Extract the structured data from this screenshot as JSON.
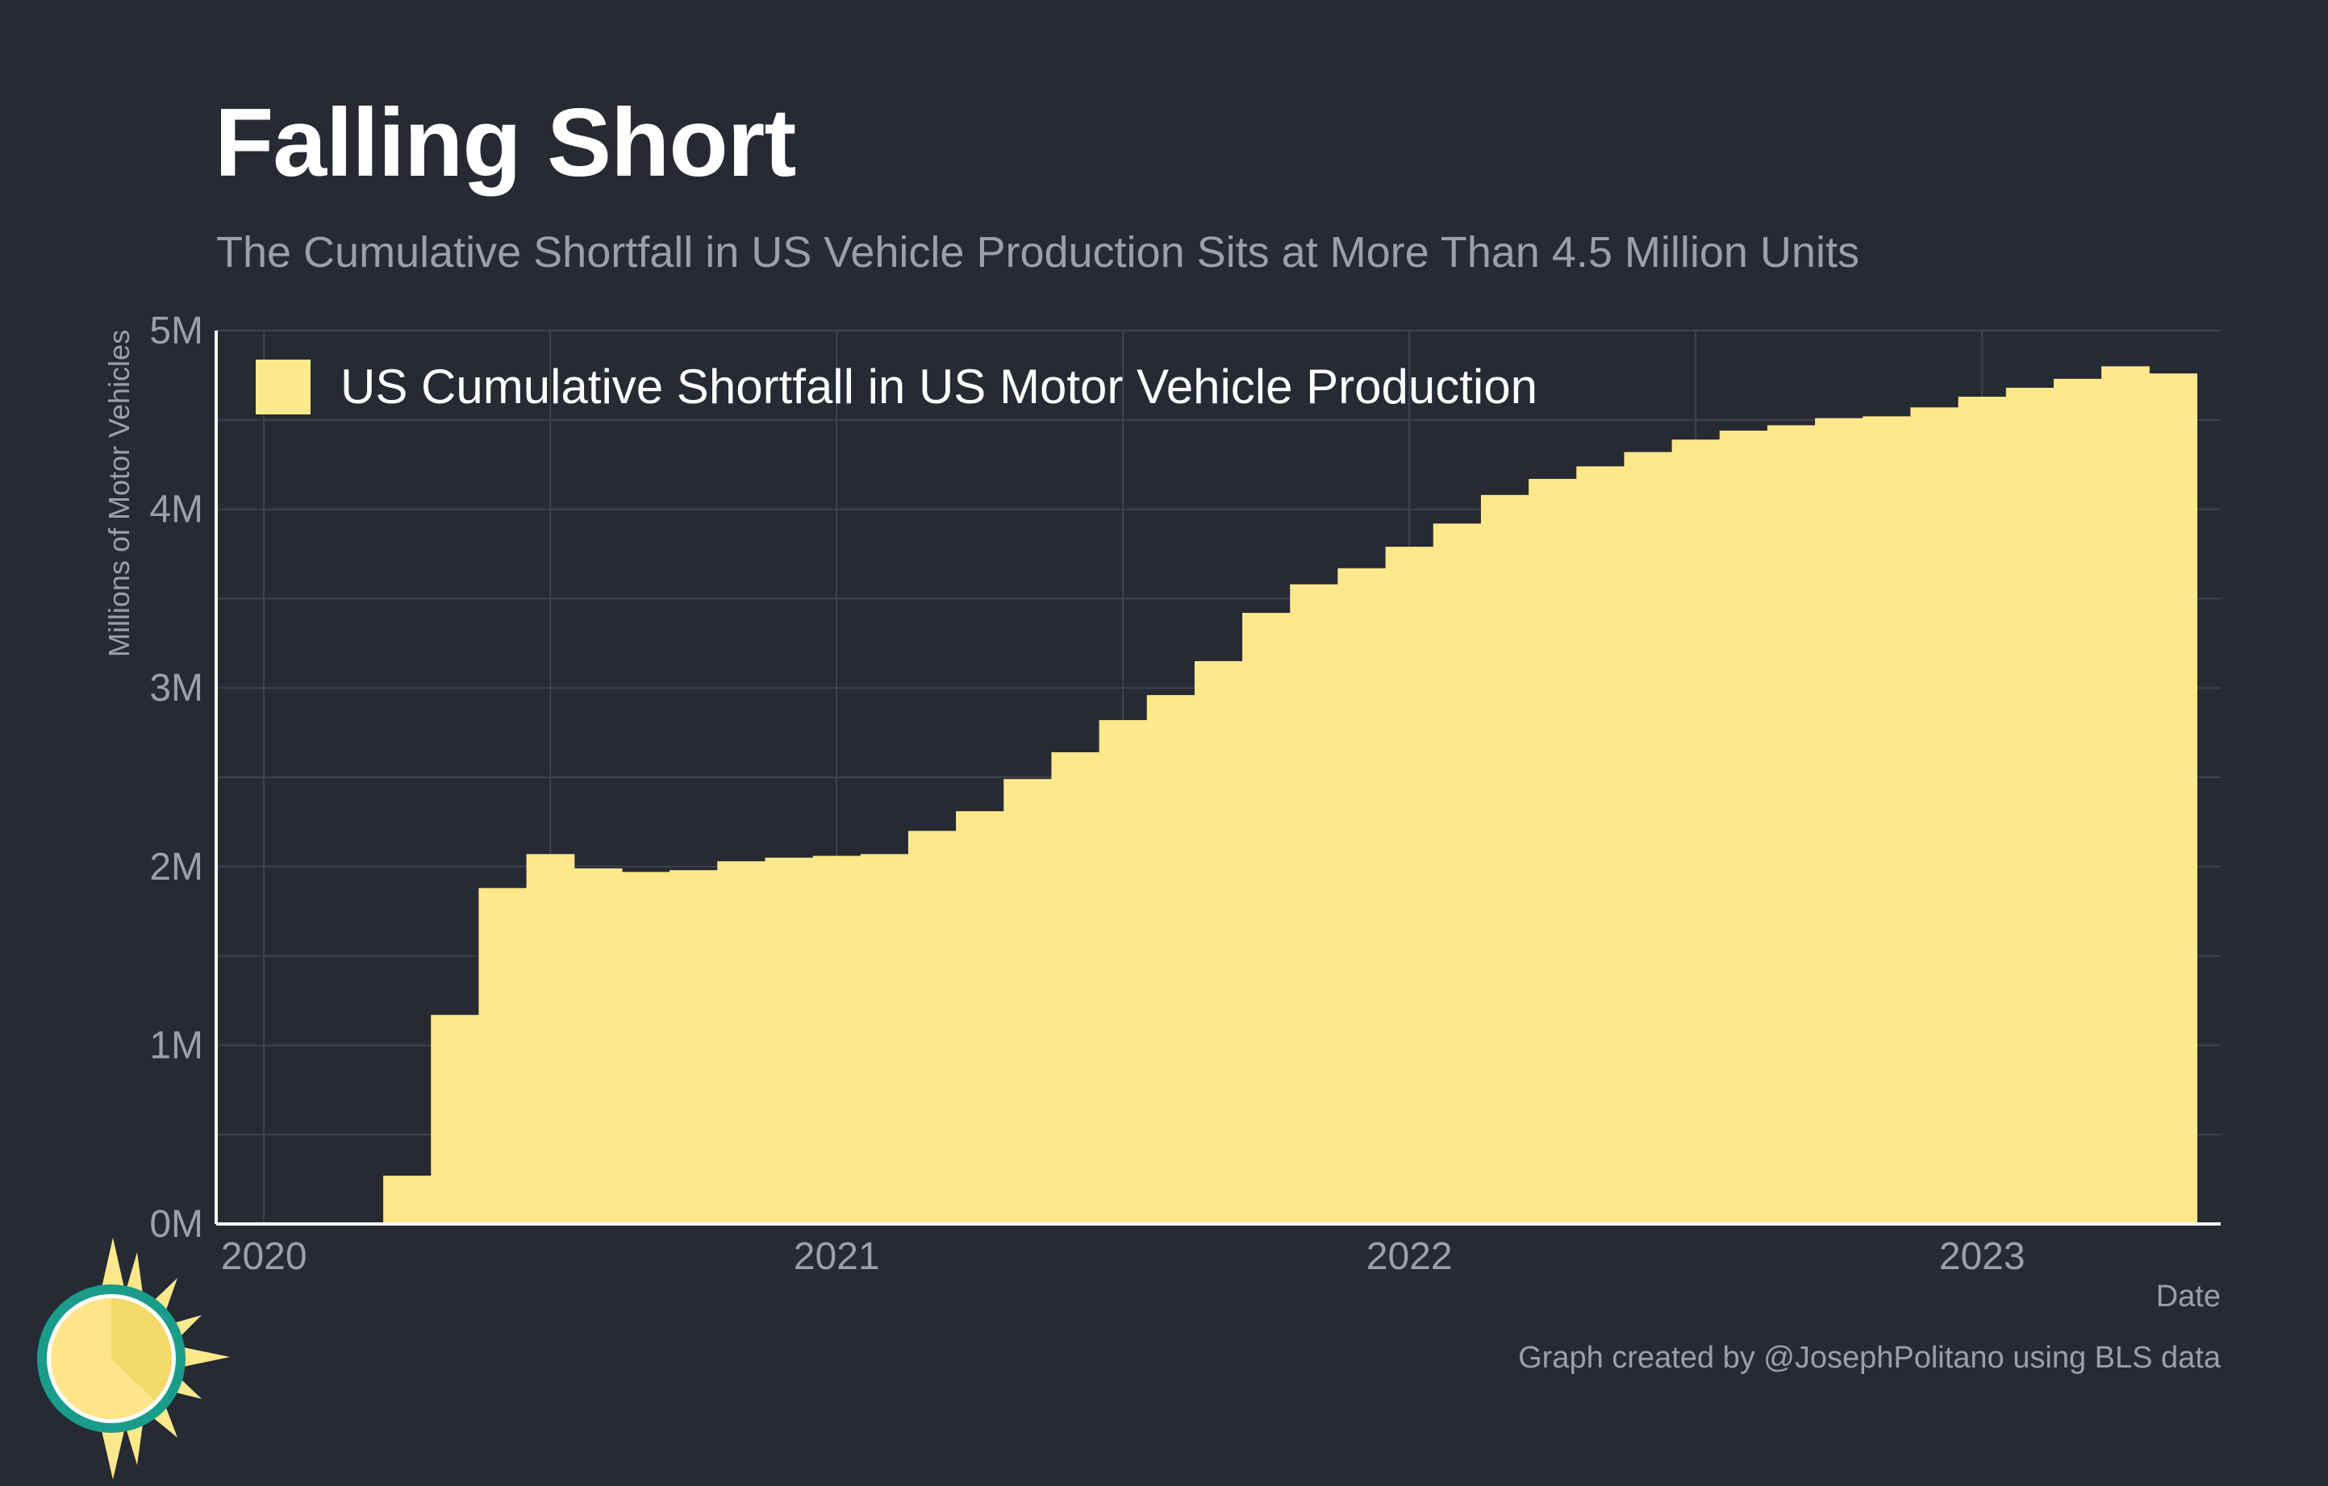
{
  "title": "Falling Short",
  "subtitle": "The Cumulative Shortfall in US Vehicle Production Sits at More Than 4.5 Million Units",
  "caption": "Graph created by @JosephPolitano using BLS data",
  "colors": {
    "background": "#252a33",
    "bar": "#ffe88c",
    "grid": "#3e434c",
    "axis": "#ffffff",
    "tick_text": "#9aa0a8"
  },
  "logo_icon": "sun-clock-icon",
  "chart_data": {
    "type": "bar",
    "title": "Falling Short",
    "subtitle": "The Cumulative Shortfall in US Vehicle Production Sits at More Than 4.5 Million Units",
    "xlabel": "Date",
    "ylabel": "Millions of Motor Vehicles",
    "ylim": [
      0,
      5
    ],
    "yticks": [
      0,
      1,
      2,
      3,
      4,
      5
    ],
    "ytick_labels": [
      "0M",
      "1M",
      "2M",
      "3M",
      "4M",
      "5M"
    ],
    "xticks": [
      "2020-01",
      "2021-01",
      "2022-01",
      "2023-01"
    ],
    "xtick_labels": [
      "2020",
      "2021",
      "2022",
      "2023"
    ],
    "xlim": [
      "2019-12",
      "2023-06"
    ],
    "grid": true,
    "legend_position": "top-left",
    "series": [
      {
        "name": "US Cumulative Shortfall in US Motor Vehicle Production",
        "color": "#ffe88c",
        "x": [
          "2020-01",
          "2020-02",
          "2020-03",
          "2020-04",
          "2020-05",
          "2020-06",
          "2020-07",
          "2020-08",
          "2020-09",
          "2020-10",
          "2020-11",
          "2020-12",
          "2021-01",
          "2021-02",
          "2021-03",
          "2021-04",
          "2021-05",
          "2021-06",
          "2021-07",
          "2021-08",
          "2021-09",
          "2021-10",
          "2021-11",
          "2021-12",
          "2022-01",
          "2022-02",
          "2022-03",
          "2022-04",
          "2022-05",
          "2022-06",
          "2022-07",
          "2022-08",
          "2022-09",
          "2022-10",
          "2022-11",
          "2022-12",
          "2023-01",
          "2023-02",
          "2023-03",
          "2023-04"
        ],
        "values": [
          0,
          0,
          0.27,
          1.17,
          1.88,
          2.07,
          1.99,
          1.97,
          1.98,
          2.03,
          2.05,
          2.06,
          2.07,
          2.2,
          2.31,
          2.49,
          2.64,
          2.82,
          2.96,
          3.15,
          3.42,
          3.58,
          3.67,
          3.79,
          3.92,
          4.08,
          4.17,
          4.24,
          4.32,
          4.39,
          4.44,
          4.47,
          4.51,
          4.52,
          4.57,
          4.63,
          4.68,
          4.73,
          4.8,
          4.76
        ]
      }
    ]
  }
}
